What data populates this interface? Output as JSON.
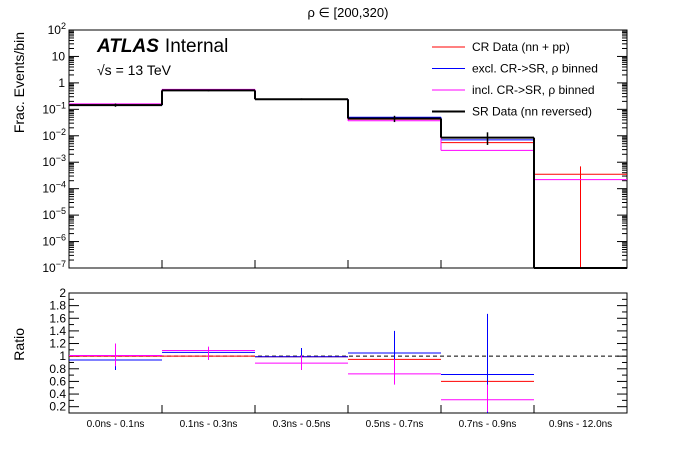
{
  "chart_data": [
    {
      "type": "histogram",
      "title": "ρ ∈ [200,320)",
      "ylabel": "Frac. Events/bin",
      "yscale": "log",
      "ylim": [
        1e-07,
        100
      ],
      "yticks": [
        {
          "v": 1e-07,
          "label": "10",
          "exp": "−7"
        },
        {
          "v": 1e-06,
          "label": "10",
          "exp": "−6"
        },
        {
          "v": 1e-05,
          "label": "10",
          "exp": "−5"
        },
        {
          "v": 0.0001,
          "label": "10",
          "exp": "−4"
        },
        {
          "v": 0.001,
          "label": "10",
          "exp": "−3"
        },
        {
          "v": 0.01,
          "label": "10",
          "exp": "−2"
        },
        {
          "v": 0.1,
          "label": "10",
          "exp": "−1"
        },
        {
          "v": 1,
          "label": "1",
          "exp": ""
        },
        {
          "v": 10,
          "label": "10",
          "exp": ""
        },
        {
          "v": 100,
          "label": "10",
          "exp": "2"
        }
      ],
      "categories": [
        "0.0ns - 0.1ns",
        "0.1ns - 0.3ns",
        "0.3ns - 0.5ns",
        "0.5ns - 0.7ns",
        "0.7ns - 0.9ns",
        "0.9ns - 12.0ns"
      ],
      "atlas_label": "ATLAS",
      "atlas_sub": "Internal",
      "energy_label": "√s = 13 TeV",
      "legend_position": "top-right",
      "series": [
        {
          "name": "CR Data (nn + pp)",
          "color": "#ff0000",
          "width": 1,
          "values": [
            0.155,
            0.53,
            0.245,
            0.042,
            0.0055,
            0.00035
          ],
          "errors": [
            null,
            null,
            null,
            null,
            null,
            [
              1e-07,
              0.0007
            ]
          ]
        },
        {
          "name": "excl. CR->SR, ρ binned",
          "color": "#0000ff",
          "width": 1,
          "values": [
            0.14,
            0.55,
            0.245,
            0.05,
            0.007,
            0.0
          ],
          "errors": [
            null,
            null,
            null,
            null,
            null,
            null
          ]
        },
        {
          "name": "incl. CR->SR, ρ binned",
          "color": "#ff00ff",
          "width": 1,
          "values": [
            0.16,
            0.57,
            0.24,
            0.037,
            0.0028,
            0.00022
          ],
          "errors": [
            null,
            null,
            null,
            null,
            null,
            null
          ]
        },
        {
          "name": "SR Data (nn reversed)",
          "color": "#000000",
          "width": 2,
          "values": [
            0.145,
            0.52,
            0.24,
            0.045,
            0.0085,
            0.0
          ],
          "errors": [
            [
              0.125,
              0.165
            ],
            [
              0.48,
              0.56
            ],
            [
              0.225,
              0.26
            ],
            [
              0.033,
              0.057
            ],
            [
              0.0045,
              0.0135
            ],
            null
          ]
        }
      ]
    },
    {
      "type": "ratio",
      "ylabel": "Ratio",
      "ylim": [
        0.1,
        2.0
      ],
      "yticks": [
        0.2,
        0.4,
        0.6,
        0.8,
        1,
        1.2,
        1.4,
        1.6,
        1.8,
        2
      ],
      "reference_line": 1,
      "categories": [
        "0.0ns - 0.1ns",
        "0.1ns - 0.3ns",
        "0.3ns - 0.5ns",
        "0.5ns - 0.7ns",
        "0.7ns - 0.9ns",
        "0.9ns - 12.0ns"
      ],
      "series": [
        {
          "name": "CR Data (nn + pp)",
          "color": "#ff0000",
          "values": [
            1.0,
            1.0,
            0.99,
            0.95,
            0.6,
            null
          ],
          "errors": [
            null,
            null,
            null,
            null,
            null,
            null
          ]
        },
        {
          "name": "excl. CR->SR, ρ binned",
          "color": "#0000ff",
          "values": [
            0.94,
            1.06,
            0.99,
            1.05,
            0.71,
            null
          ],
          "errors": [
            [
              0.78,
              1.1
            ],
            null,
            [
              0.85,
              1.13
            ],
            [
              0.65,
              1.4
            ],
            [
              0.1,
              1.67
            ],
            null
          ]
        },
        {
          "name": "incl. CR->SR, ρ binned",
          "color": "#ff00ff",
          "values": [
            1.01,
            1.09,
            0.89,
            0.72,
            0.31,
            null
          ],
          "errors": [
            [
              0.84,
              1.2
            ],
            [
              0.94,
              1.15
            ],
            [
              0.78,
              1.01
            ],
            [
              0.55,
              0.95
            ],
            [
              0.12,
              0.55
            ],
            null
          ]
        }
      ]
    }
  ]
}
